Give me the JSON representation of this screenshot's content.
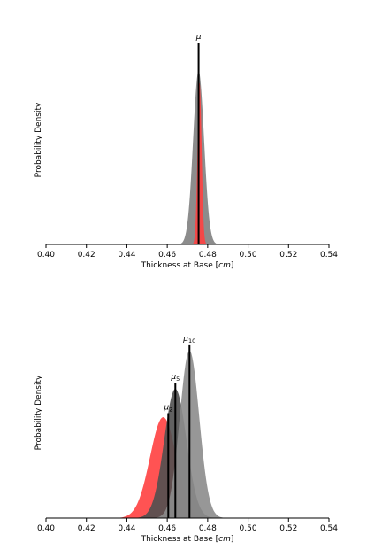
{
  "chart_data": [
    {
      "type": "area",
      "xlabel_prefix": "Thickness at Base [",
      "xlabel_unit": "cm",
      "xlabel_suffix": "]",
      "ylabel": "Probability Density",
      "xlim": [
        0.4,
        0.54
      ],
      "xticks": [
        "0.40",
        "0.42",
        "0.44",
        "0.46",
        "0.48",
        "0.50",
        "0.52",
        "0.54"
      ],
      "yticks_shown": false,
      "series": [
        {
          "color": "#808080",
          "mean": 0.4755,
          "sd": 0.0027,
          "peak": 0.86
        },
        {
          "color": "#ff4040",
          "mean": 0.476,
          "sd": 0.001,
          "peak": 0.8
        }
      ],
      "markers": [
        {
          "label": "μ",
          "subscript": "",
          "x": 0.4755,
          "height": 1.0
        }
      ]
    },
    {
      "type": "area",
      "xlabel_prefix": "Thickness at Base [",
      "xlabel_unit": "cm",
      "xlabel_suffix": "]",
      "ylabel": "Probability Density",
      "xlim": [
        0.4,
        0.54
      ],
      "xticks": [
        "0.40",
        "0.42",
        "0.44",
        "0.46",
        "0.48",
        "0.50",
        "0.52",
        "0.54"
      ],
      "yticks_shown": false,
      "series": [
        {
          "color": "#ff4040",
          "mean": 0.458,
          "sd": 0.0065,
          "peak": 0.5
        },
        {
          "color": "#505050",
          "mean": 0.464,
          "sd": 0.0055,
          "peak": 0.64
        },
        {
          "color": "#8c8c8c",
          "mean": 0.471,
          "sd": 0.0048,
          "peak": 0.83
        }
      ],
      "markers": [
        {
          "label": "μ",
          "subscript": "2",
          "x": 0.4605,
          "height": 0.52
        },
        {
          "label": "μ",
          "subscript": "5",
          "x": 0.464,
          "height": 0.67
        },
        {
          "label": "μ",
          "subscript": "10",
          "x": 0.471,
          "height": 0.86
        }
      ]
    }
  ]
}
